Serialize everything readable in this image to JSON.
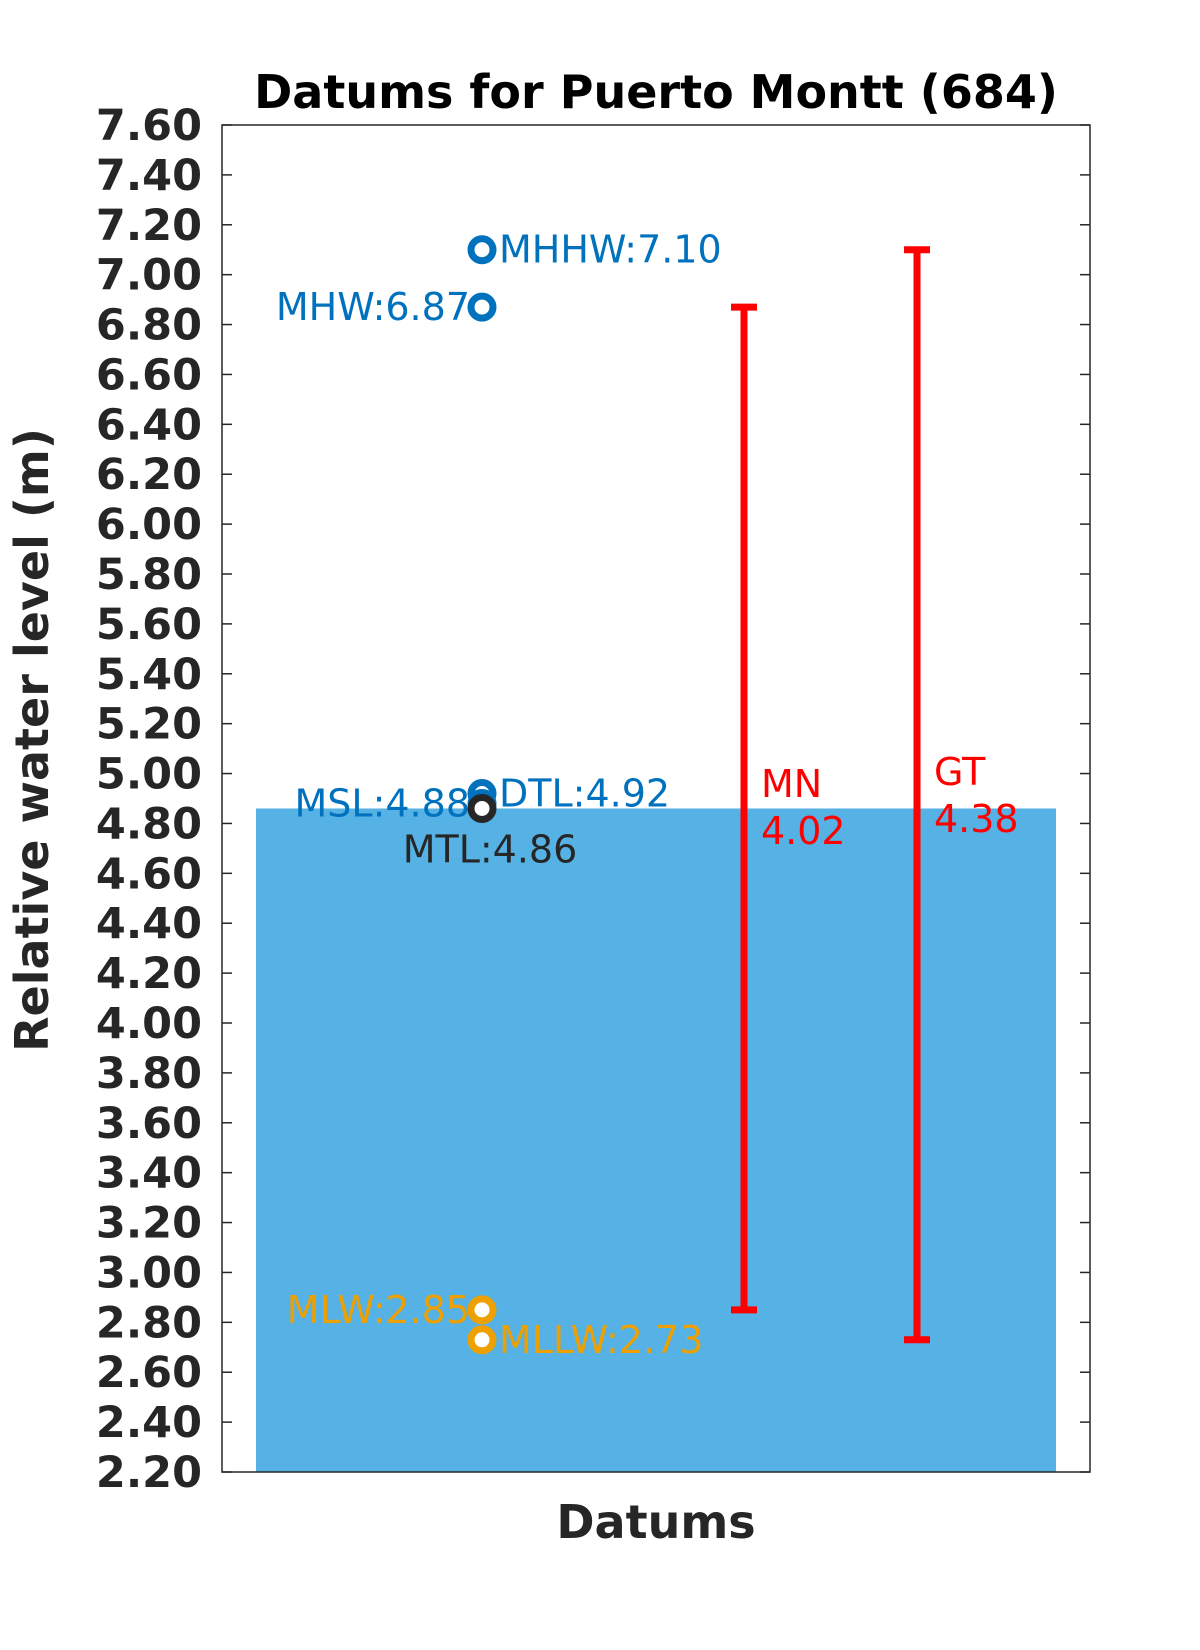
{
  "chart_data": {
    "type": "bar",
    "title": "Datums for Puerto Montt (684)",
    "xlabel": "Datums",
    "ylabel": "Relative water level (m)",
    "ylim": [
      2.2,
      7.6
    ],
    "yticks": [
      "2.20",
      "2.40",
      "2.60",
      "2.80",
      "3.00",
      "3.20",
      "3.40",
      "3.60",
      "3.80",
      "4.00",
      "4.20",
      "4.40",
      "4.60",
      "4.80",
      "5.00",
      "5.20",
      "5.40",
      "5.60",
      "5.80",
      "6.00",
      "6.20",
      "6.40",
      "6.60",
      "6.80",
      "7.00",
      "7.20",
      "7.40",
      "7.60"
    ],
    "grid": false,
    "bar": {
      "value": 4.86,
      "color": "#56B1E5"
    },
    "datums": [
      {
        "name": "MHHW",
        "value": 7.1,
        "text": "MHHW:7.10",
        "color": "#0072BD",
        "side": "right"
      },
      {
        "name": "MHW",
        "value": 6.87,
        "text": "MHW:6.87",
        "color": "#0072BD",
        "side": "left"
      },
      {
        "name": "DTL",
        "value": 4.92,
        "text": "DTL:4.92",
        "color": "#0072BD",
        "side": "right"
      },
      {
        "name": "MSL",
        "value": 4.88,
        "text": "MSL:4.88",
        "color": "#0072BD",
        "side": "left"
      },
      {
        "name": "MTL",
        "value": 4.86,
        "text": "MTL:4.86",
        "color": "#262626",
        "side": "below"
      },
      {
        "name": "MLW",
        "value": 2.85,
        "text": "MLW:2.85",
        "color": "#EDA000",
        "side": "left"
      },
      {
        "name": "MLLW",
        "value": 2.73,
        "text": "MLLW:2.73",
        "color": "#EDA000",
        "side": "right"
      }
    ],
    "ranges": [
      {
        "name": "MN",
        "low": 2.85,
        "high": 6.87,
        "label": "MN",
        "value_text": "4.02",
        "color": "#FF0000"
      },
      {
        "name": "GT",
        "low": 2.73,
        "high": 7.1,
        "label": "GT",
        "value_text": "4.38",
        "color": "#FF0000"
      }
    ]
  }
}
